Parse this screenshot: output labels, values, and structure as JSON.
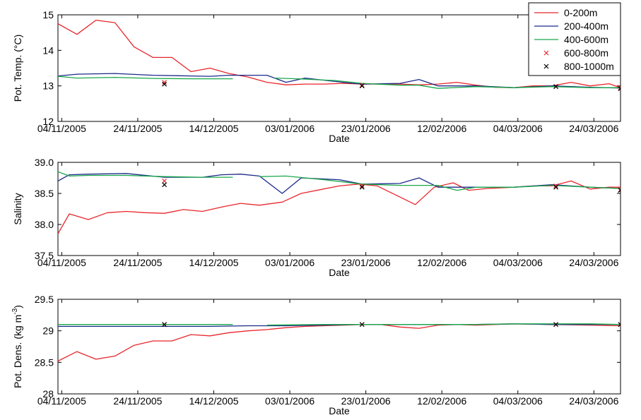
{
  "legend": {
    "placement": "top-right",
    "entries": [
      {
        "label": "0-200m",
        "color": "#e8262b",
        "marker": "line"
      },
      {
        "label": "200-400m",
        "color": "#1b2a8a",
        "marker": "line"
      },
      {
        "label": "400-600m",
        "color": "#1aa84a",
        "marker": "line"
      },
      {
        "label": "600-800m",
        "color": "#e8262b",
        "marker": "x"
      },
      {
        "label": "800-1000m",
        "color": "#000000",
        "marker": "x"
      }
    ]
  },
  "chart_data": [
    {
      "type": "line",
      "ylabel": "Pot. Temp. (°C)",
      "xlabel": "Date",
      "xlim": [
        "2005-11-03",
        "2006-03-31"
      ],
      "ylim": [
        12,
        15
      ],
      "yticks": [
        "12",
        "13",
        "14",
        "15"
      ],
      "xticks": [
        "04/11/2005",
        "24/11/2005",
        "14/12/2005",
        "03/01/2006",
        "23/01/2006",
        "12/02/2006",
        "04/03/2006",
        "24/03/2006"
      ],
      "grid": false,
      "series": [
        {
          "name": "0-200m",
          "color": "#e8262b",
          "x": [
            "2005-11-03",
            "2005-11-08",
            "2005-11-13",
            "2005-11-18",
            "2005-11-23",
            "2005-11-28",
            "2005-12-03",
            "2005-12-08",
            "2005-12-13",
            "2005-12-18",
            "2005-12-23",
            "2005-12-28",
            "2006-01-02",
            "2006-01-07",
            "2006-01-12",
            "2006-01-17",
            "2006-01-22",
            "2006-01-27",
            "2006-02-01",
            "2006-02-06",
            "2006-02-11",
            "2006-02-16",
            "2006-02-21",
            "2006-02-26",
            "2006-03-03",
            "2006-03-08",
            "2006-03-13",
            "2006-03-18",
            "2006-03-23",
            "2006-03-28",
            "2006-03-31"
          ],
          "y": [
            14.75,
            14.45,
            14.85,
            14.78,
            14.1,
            13.8,
            13.8,
            13.4,
            13.5,
            13.35,
            13.25,
            13.1,
            13.03,
            13.05,
            13.05,
            13.07,
            13.05,
            13.05,
            13.05,
            13.03,
            13.05,
            13.1,
            13.02,
            12.96,
            12.95,
            13.0,
            13.0,
            13.1,
            13.0,
            13.06,
            12.95
          ]
        },
        {
          "name": "200-400m",
          "color": "#1b2a8a",
          "x": [
            "2005-11-03",
            "2005-11-08",
            "2005-11-18",
            "2005-11-28",
            "2005-12-08",
            "2005-12-13",
            "2005-12-18",
            "2005-12-28",
            "2006-01-02",
            "2006-01-07",
            "2006-01-17",
            "2006-01-22",
            "2006-02-01",
            "2006-02-06",
            "2006-02-11",
            "2006-02-21",
            "2006-03-03",
            "2006-03-13",
            "2006-03-23",
            "2006-03-31"
          ],
          "y": [
            13.28,
            13.33,
            13.35,
            13.3,
            13.28,
            13.27,
            13.3,
            13.3,
            13.1,
            13.22,
            13.1,
            13.05,
            13.07,
            13.18,
            13.0,
            13.0,
            12.95,
            13.0,
            12.96,
            12.94
          ]
        },
        {
          "name": "400-600m",
          "color": "#1aa84a",
          "x": [
            "2005-11-03",
            "2005-11-08",
            "2005-11-18",
            "2005-11-28",
            "2005-12-08",
            "2005-12-13",
            "2005-12-19"
          ],
          "y": [
            13.27,
            13.22,
            13.24,
            13.21,
            13.2,
            13.2,
            13.2
          ]
        },
        {
          "name": "400-600m",
          "color": "#1aa84a",
          "x": [
            "2005-12-30",
            "2006-01-05",
            "2006-01-15",
            "2006-01-22",
            "2006-02-01",
            "2006-02-06",
            "2006-02-11",
            "2006-02-21",
            "2006-03-03",
            "2006-03-13",
            "2006-03-23",
            "2006-03-31"
          ],
          "y": [
            13.22,
            13.2,
            13.15,
            13.07,
            13.02,
            13.02,
            12.93,
            12.98,
            12.95,
            12.98,
            12.95,
            12.95
          ]
        }
      ],
      "markers": [
        {
          "name": "600-800m",
          "color": "#e8262b",
          "points": [
            [
              "2005-12-01",
              13.1
            ],
            [
              "2006-01-22",
              13.02
            ],
            [
              "2006-03-14",
              12.98
            ],
            [
              "2006-03-31",
              12.95
            ]
          ]
        },
        {
          "name": "800-1000m",
          "color": "#000000",
          "points": [
            [
              "2005-12-01",
              13.05
            ],
            [
              "2006-01-22",
              13.0
            ],
            [
              "2006-03-14",
              12.98
            ],
            [
              "2006-03-31",
              12.92
            ]
          ]
        }
      ]
    },
    {
      "type": "line",
      "ylabel": "Salinity",
      "xlabel": "Date",
      "xlim": [
        "2005-11-03",
        "2006-03-31"
      ],
      "ylim": [
        37.5,
        39.0
      ],
      "yticks": [
        "37.5",
        "38.0",
        "38.5",
        "39.0"
      ],
      "xticks": [
        "04/11/2005",
        "24/11/2005",
        "14/12/2005",
        "03/01/2006",
        "23/01/2006",
        "12/02/2006",
        "04/03/2006",
        "24/03/2006"
      ],
      "grid": false,
      "series": [
        {
          "name": "0-200m",
          "color": "#e8262b",
          "x": [
            "2005-11-03",
            "2005-11-06",
            "2005-11-11",
            "2005-11-16",
            "2005-11-21",
            "2005-11-26",
            "2005-12-01",
            "2005-12-06",
            "2005-12-11",
            "2005-12-16",
            "2005-12-21",
            "2005-12-26",
            "2006-01-01",
            "2006-01-06",
            "2006-01-11",
            "2006-01-16",
            "2006-01-21",
            "2006-01-26",
            "2006-01-31",
            "2006-02-05",
            "2006-02-10",
            "2006-02-15",
            "2006-02-19",
            "2006-02-24",
            "2006-03-03",
            "2006-03-08",
            "2006-03-13",
            "2006-03-18",
            "2006-03-23",
            "2006-03-28",
            "2006-03-31"
          ],
          "y": [
            37.85,
            38.17,
            38.08,
            38.19,
            38.21,
            38.19,
            38.18,
            38.24,
            38.21,
            38.28,
            38.34,
            38.31,
            38.36,
            38.5,
            38.56,
            38.62,
            38.65,
            38.62,
            38.47,
            38.32,
            38.6,
            38.67,
            38.55,
            38.58,
            38.6,
            38.62,
            38.62,
            38.7,
            38.57,
            38.6,
            38.6
          ]
        },
        {
          "name": "200-400m",
          "color": "#1b2a8a",
          "x": [
            "2005-11-03",
            "2005-11-06",
            "2005-11-11",
            "2005-11-21",
            "2005-12-01",
            "2005-12-11",
            "2005-12-16",
            "2005-12-21",
            "2005-12-26",
            "2006-01-01",
            "2006-01-06",
            "2006-01-16",
            "2006-01-22",
            "2006-02-01",
            "2006-02-06",
            "2006-02-11",
            "2006-02-21",
            "2006-03-03",
            "2006-03-13",
            "2006-03-23",
            "2006-03-31"
          ],
          "y": [
            38.7,
            38.8,
            38.81,
            38.82,
            38.76,
            38.76,
            38.8,
            38.81,
            38.78,
            38.5,
            38.75,
            38.72,
            38.65,
            38.66,
            38.75,
            38.6,
            38.6,
            38.6,
            38.64,
            38.6,
            38.58
          ]
        },
        {
          "name": "400-600m",
          "color": "#1aa84a",
          "x": [
            "2005-11-03",
            "2005-11-06",
            "2005-11-11",
            "2005-11-21",
            "2005-12-01",
            "2005-12-11",
            "2005-12-19"
          ],
          "y": [
            38.85,
            38.78,
            38.79,
            38.79,
            38.77,
            38.76,
            38.76
          ]
        },
        {
          "name": "400-600m",
          "color": "#1aa84a",
          "x": [
            "2005-12-26",
            "2006-01-02",
            "2006-01-12",
            "2006-01-22",
            "2006-02-01",
            "2006-02-11",
            "2006-02-16",
            "2006-02-21",
            "2006-03-03",
            "2006-03-13",
            "2006-03-23",
            "2006-03-31"
          ],
          "y": [
            38.77,
            38.78,
            38.72,
            38.65,
            38.63,
            38.63,
            38.55,
            38.6,
            38.6,
            38.63,
            38.6,
            38.58
          ]
        }
      ],
      "markers": [
        {
          "name": "600-800m",
          "color": "#e8262b",
          "points": [
            [
              "2005-12-01",
              38.7
            ],
            [
              "2006-01-22",
              38.62
            ],
            [
              "2006-03-14",
              38.62
            ],
            [
              "2006-03-31",
              38.56
            ]
          ]
        },
        {
          "name": "800-1000m",
          "color": "#000000",
          "points": [
            [
              "2005-12-01",
              38.64
            ],
            [
              "2006-01-22",
              38.6
            ],
            [
              "2006-03-14",
              38.6
            ],
            [
              "2006-03-31",
              38.55
            ]
          ]
        }
      ]
    },
    {
      "type": "line",
      "ylabel": "Pot. Dens. (kg m",
      "ylabel_superscript": "-3",
      "ylabel_suffix": ")",
      "xlabel": "Date",
      "xlim": [
        "2005-11-03",
        "2006-03-31"
      ],
      "ylim": [
        28,
        29.5
      ],
      "yticks": [
        "28",
        "28.5",
        "29",
        "29.5"
      ],
      "xticks": [
        "04/11/2005",
        "24/11/2005",
        "14/12/2005",
        "03/01/2006",
        "23/01/2006",
        "12/02/2006",
        "04/03/2006",
        "24/03/2006"
      ],
      "grid": false,
      "series": [
        {
          "name": "0-200m",
          "color": "#e8262b",
          "x": [
            "2005-11-03",
            "2005-11-08",
            "2005-11-13",
            "2005-11-18",
            "2005-11-23",
            "2005-11-28",
            "2005-12-03",
            "2005-12-08",
            "2005-12-13",
            "2005-12-18",
            "2005-12-23",
            "2005-12-28",
            "2006-01-02",
            "2006-01-07",
            "2006-01-12",
            "2006-01-17",
            "2006-01-22",
            "2006-01-27",
            "2006-02-01",
            "2006-02-06",
            "2006-02-11",
            "2006-02-16",
            "2006-02-21",
            "2006-02-26",
            "2006-03-03",
            "2006-03-13",
            "2006-03-23",
            "2006-03-31"
          ],
          "y": [
            28.52,
            28.67,
            28.55,
            28.6,
            28.77,
            28.84,
            28.84,
            28.94,
            28.92,
            28.97,
            29.0,
            29.02,
            29.05,
            29.07,
            29.08,
            29.09,
            29.1,
            29.1,
            29.06,
            29.04,
            29.09,
            29.1,
            29.09,
            29.1,
            29.11,
            29.1,
            29.09,
            29.08
          ]
        },
        {
          "name": "200-400m",
          "color": "#1b2a8a",
          "x": [
            "2005-11-03",
            "2005-11-13",
            "2005-11-23",
            "2005-12-03",
            "2005-12-13",
            "2005-12-23",
            "2006-01-02",
            "2006-01-12",
            "2006-01-22",
            "2006-02-01",
            "2006-02-11",
            "2006-02-21",
            "2006-03-03",
            "2006-03-13",
            "2006-03-23",
            "2006-03-31"
          ],
          "y": [
            29.07,
            29.07,
            29.07,
            29.07,
            29.07,
            29.08,
            29.08,
            29.09,
            29.1,
            29.1,
            29.1,
            29.1,
            29.11,
            29.1,
            29.1,
            29.1
          ]
        },
        {
          "name": "400-600m",
          "color": "#1aa84a",
          "x": [
            "2005-11-03",
            "2005-11-13",
            "2005-11-23",
            "2005-12-03",
            "2005-12-19"
          ],
          "y": [
            29.1,
            29.1,
            29.1,
            29.1,
            29.1
          ]
        },
        {
          "name": "400-600m",
          "color": "#1aa84a",
          "x": [
            "2005-12-28",
            "2006-01-12",
            "2006-01-22",
            "2006-02-01",
            "2006-02-11",
            "2006-02-21",
            "2006-03-03",
            "2006-03-13",
            "2006-03-23",
            "2006-03-31"
          ],
          "y": [
            29.09,
            29.1,
            29.1,
            29.1,
            29.1,
            29.1,
            29.11,
            29.11,
            29.11,
            29.1
          ]
        }
      ],
      "markers": [
        {
          "name": "600-800m",
          "color": "#e8262b",
          "points": [
            [
              "2005-12-01",
              29.1
            ],
            [
              "2006-01-22",
              29.1
            ],
            [
              "2006-03-14",
              29.1
            ],
            [
              "2006-03-31",
              29.1
            ]
          ]
        },
        {
          "name": "800-1000m",
          "color": "#000000",
          "points": [
            [
              "2005-12-01",
              29.1
            ],
            [
              "2006-01-22",
              29.1
            ],
            [
              "2006-03-14",
              29.1
            ],
            [
              "2006-03-31",
              29.1
            ]
          ]
        }
      ]
    }
  ]
}
